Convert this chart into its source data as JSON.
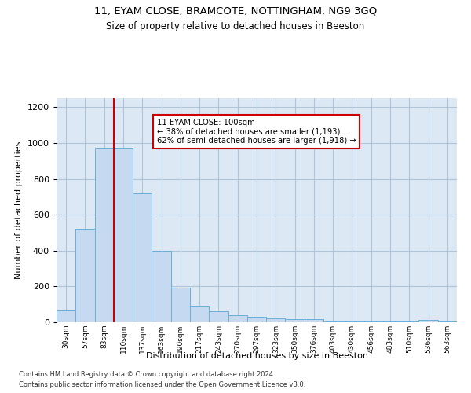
{
  "title1": "11, EYAM CLOSE, BRAMCOTE, NOTTINGHAM, NG9 3GQ",
  "title2": "Size of property relative to detached houses in Beeston",
  "xlabel": "Distribution of detached houses by size in Beeston",
  "ylabel": "Number of detached properties",
  "footer1": "Contains HM Land Registry data © Crown copyright and database right 2024.",
  "footer2": "Contains public sector information licensed under the Open Government Licence v3.0.",
  "annotation_line1": "11 EYAM CLOSE: 100sqm",
  "annotation_line2": "← 38% of detached houses are smaller (1,193)",
  "annotation_line3": "62% of semi-detached houses are larger (1,918) →",
  "bar_labels": [
    "30sqm",
    "57sqm",
    "83sqm",
    "110sqm",
    "137sqm",
    "163sqm",
    "190sqm",
    "217sqm",
    "243sqm",
    "270sqm",
    "297sqm",
    "323sqm",
    "350sqm",
    "376sqm",
    "403sqm",
    "430sqm",
    "456sqm",
    "483sqm",
    "510sqm",
    "536sqm",
    "563sqm"
  ],
  "bar_values": [
    65,
    520,
    975,
    975,
    720,
    400,
    195,
    90,
    60,
    40,
    32,
    20,
    18,
    18,
    5,
    5,
    5,
    5,
    5,
    12,
    5
  ],
  "bar_color": "#c5d9f0",
  "bar_edge_color": "#6baed6",
  "vline_color": "#cc0000",
  "vline_x_index": 2.5,
  "annotation_box_color": "#cc0000",
  "background_color": "#ffffff",
  "plot_bg_color": "#dce9f5",
  "grid_color": "#b0c4d8",
  "ylim": [
    0,
    1250
  ],
  "yticks": [
    0,
    200,
    400,
    600,
    800,
    1000,
    1200
  ]
}
